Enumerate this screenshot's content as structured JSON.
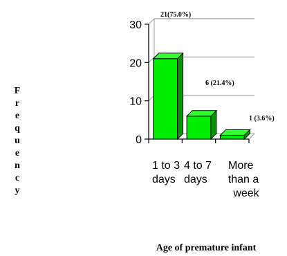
{
  "chart_data": {
    "type": "bar",
    "categories": [
      "1 to 3 days",
      "4 to 7 days",
      "More than a week"
    ],
    "category_lines": [
      [
        "1 to 3",
        "days"
      ],
      [
        "4 to 7",
        "days"
      ],
      [
        "More",
        "than a",
        "week"
      ]
    ],
    "values": [
      21,
      6,
      1
    ],
    "data_labels": [
      "21(75.0%)",
      "6 (21.4%)",
      "1 (3.6%)"
    ],
    "title": "",
    "xlabel": "Age of premature infant",
    "ylabel": "Frequency",
    "ylim": [
      0,
      30
    ],
    "yticks": [
      "0",
      "10",
      "20",
      "30"
    ],
    "grid": true,
    "legend": "none",
    "colors": {
      "bar_front": "#00ee00",
      "bar_side": "#009900",
      "bar_top": "#33ff33",
      "grid": "#999999",
      "axis": "#000000"
    }
  }
}
